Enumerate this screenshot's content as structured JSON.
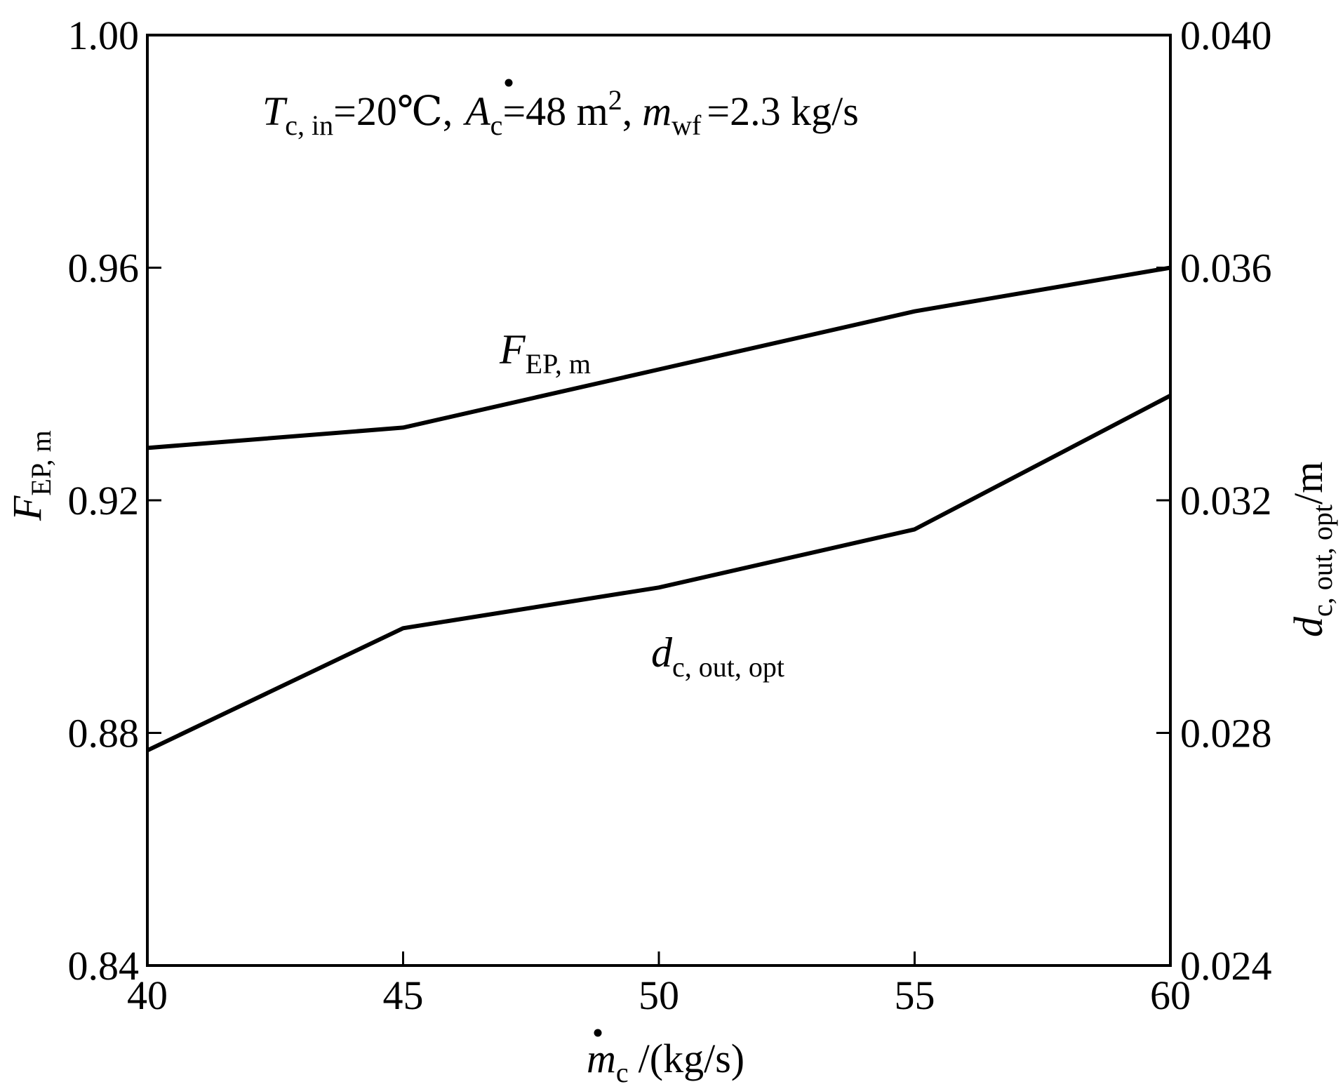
{
  "chart_data": {
    "type": "line",
    "annotation": {
      "t_symbol": "T",
      "t_sub": "c, in",
      "t_val": "=20℃,",
      "a_symbol": "A",
      "a_sub": "c",
      "a_val": "=48 m",
      "a_sup": "2",
      "a_comma": ",",
      "m_symbol": "m",
      "m_sub": "wf",
      "m_val": "=2.3 kg/s"
    },
    "xlabel": {
      "symbol": "m",
      "sub": "c",
      "unit": "/(kg/s)"
    },
    "ylabel_left": {
      "symbol": "F",
      "sub": "EP, m"
    },
    "ylabel_right": {
      "symbol": "d",
      "sub": "c, out, opt",
      "unit": "/m"
    },
    "x": [
      40,
      45,
      50,
      55,
      60
    ],
    "xlim": [
      40,
      60
    ],
    "xticks": [
      "40",
      "45",
      "50",
      "55",
      "60"
    ],
    "ylim_left": [
      0.84,
      1.0
    ],
    "yticks_left": [
      "0.84",
      "0.88",
      "0.92",
      "0.96",
      "1.00"
    ],
    "ylim_right": [
      0.024,
      0.04
    ],
    "yticks_right": [
      "0.024",
      "0.028",
      "0.032",
      "0.036",
      "0.040"
    ],
    "grid": false,
    "series": [
      {
        "label_symbol": "F",
        "label_sub": "EP, m",
        "axis": "left",
        "x": [
          40,
          45,
          50,
          55,
          60
        ],
        "values": [
          0.929,
          0.9325,
          0.9425,
          0.9525,
          0.96
        ]
      },
      {
        "label_symbol": "d",
        "label_sub": "c, out, opt",
        "axis": "right",
        "x": [
          40,
          45,
          50,
          55,
          60
        ],
        "values": [
          0.0277,
          0.0298,
          0.0305,
          0.0315,
          0.0338
        ]
      }
    ]
  }
}
